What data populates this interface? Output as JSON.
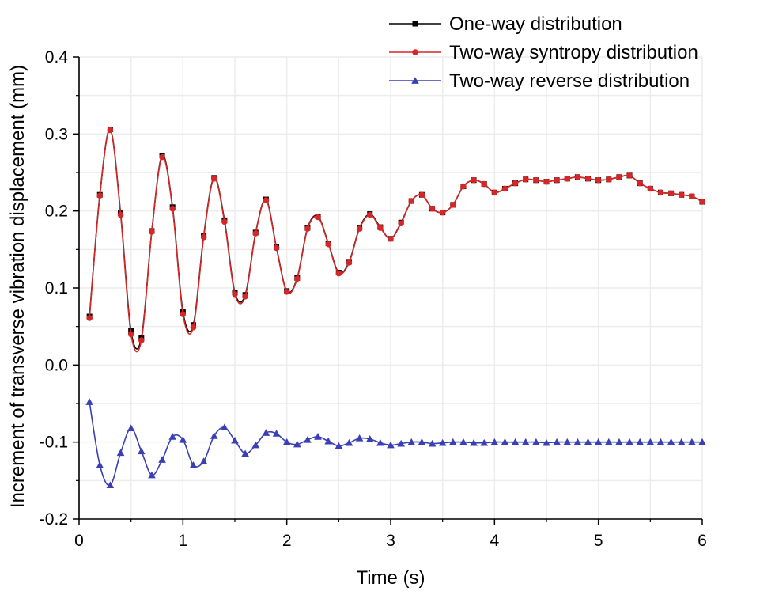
{
  "chart_data": {
    "type": "line",
    "title": "",
    "xlabel": "Time (s)",
    "ylabel": "Increment of transverse vibration displacement (mm)",
    "xlim": [
      0,
      6
    ],
    "ylim": [
      -0.2,
      0.4
    ],
    "xticks": [
      0,
      1,
      2,
      3,
      4,
      5,
      6
    ],
    "yticks": [
      -0.2,
      -0.1,
      0.0,
      0.1,
      0.2,
      0.3,
      0.4
    ],
    "xtick_labels": [
      "0",
      "1",
      "2",
      "3",
      "4",
      "5",
      "6"
    ],
    "ytick_labels": [
      "-0.2",
      "-0.1",
      "0.0",
      "0.1",
      "0.2",
      "0.3",
      "0.4"
    ],
    "grid": true,
    "legend_position": "top-right",
    "series": [
      {
        "name": "One-way distribution",
        "color": "#000000",
        "marker": "square",
        "x": [
          0.1,
          0.2,
          0.3,
          0.4,
          0.5,
          0.6,
          0.7,
          0.8,
          0.9,
          1.0,
          1.1,
          1.2,
          1.3,
          1.4,
          1.5,
          1.6,
          1.7,
          1.8,
          1.9,
          2.0,
          2.1,
          2.2,
          2.3,
          2.4,
          2.5,
          2.6,
          2.7,
          2.8,
          2.9,
          3.0,
          3.1,
          3.2,
          3.3,
          3.4,
          3.5,
          3.6,
          3.7,
          3.8,
          3.9,
          4.0,
          4.1,
          4.2,
          4.3,
          4.4,
          4.5,
          4.6,
          4.7,
          4.8,
          4.9,
          5.0,
          5.1,
          5.2,
          5.3,
          5.4,
          5.5,
          5.6,
          5.7,
          5.8,
          5.9,
          6.0
        ],
        "y": [
          0.063,
          0.221,
          0.306,
          0.197,
          0.044,
          0.035,
          0.174,
          0.272,
          0.205,
          0.069,
          0.052,
          0.168,
          0.243,
          0.188,
          0.094,
          0.091,
          0.172,
          0.215,
          0.153,
          0.096,
          0.113,
          0.178,
          0.193,
          0.158,
          0.12,
          0.134,
          0.178,
          0.196,
          0.179,
          0.164,
          0.185,
          0.213,
          0.221,
          0.203,
          0.198,
          0.208,
          0.232,
          0.24,
          0.235,
          0.224,
          0.229,
          0.236,
          0.241,
          0.24,
          0.238,
          0.24,
          0.242,
          0.244,
          0.242,
          0.24,
          0.241,
          0.244,
          0.246,
          0.236,
          0.229,
          0.224,
          0.223,
          0.221,
          0.219,
          0.212
        ]
      },
      {
        "name": "Two-way syntropy distribution",
        "color": "#d62728",
        "marker": "circle",
        "x": [
          0.1,
          0.2,
          0.3,
          0.4,
          0.5,
          0.6,
          0.7,
          0.8,
          0.9,
          1.0,
          1.1,
          1.2,
          1.3,
          1.4,
          1.5,
          1.6,
          1.7,
          1.8,
          1.9,
          2.0,
          2.1,
          2.2,
          2.3,
          2.4,
          2.5,
          2.6,
          2.7,
          2.8,
          2.9,
          3.0,
          3.1,
          3.2,
          3.3,
          3.4,
          3.5,
          3.6,
          3.7,
          3.8,
          3.9,
          4.0,
          4.1,
          4.2,
          4.3,
          4.4,
          4.5,
          4.6,
          4.7,
          4.8,
          4.9,
          5.0,
          5.1,
          5.2,
          5.3,
          5.4,
          5.5,
          5.6,
          5.7,
          5.8,
          5.9,
          6.0
        ],
        "y": [
          0.061,
          0.22,
          0.305,
          0.195,
          0.04,
          0.032,
          0.173,
          0.27,
          0.203,
          0.066,
          0.049,
          0.166,
          0.242,
          0.186,
          0.092,
          0.089,
          0.171,
          0.214,
          0.152,
          0.095,
          0.112,
          0.177,
          0.192,
          0.157,
          0.119,
          0.133,
          0.177,
          0.195,
          0.178,
          0.164,
          0.184,
          0.213,
          0.221,
          0.203,
          0.198,
          0.208,
          0.232,
          0.24,
          0.235,
          0.224,
          0.229,
          0.236,
          0.241,
          0.24,
          0.238,
          0.24,
          0.242,
          0.244,
          0.242,
          0.24,
          0.241,
          0.244,
          0.246,
          0.236,
          0.229,
          0.224,
          0.223,
          0.221,
          0.219,
          0.212
        ]
      },
      {
        "name": "Two-way reverse distribution",
        "color": "#3a3fb3",
        "marker": "triangle",
        "x": [
          0.1,
          0.2,
          0.3,
          0.4,
          0.5,
          0.6,
          0.7,
          0.8,
          0.9,
          1.0,
          1.1,
          1.2,
          1.3,
          1.4,
          1.5,
          1.6,
          1.7,
          1.8,
          1.9,
          2.0,
          2.1,
          2.2,
          2.3,
          2.4,
          2.5,
          2.6,
          2.7,
          2.8,
          2.9,
          3.0,
          3.1,
          3.2,
          3.3,
          3.4,
          3.5,
          3.6,
          3.7,
          3.8,
          3.9,
          4.0,
          4.1,
          4.2,
          4.3,
          4.4,
          4.5,
          4.6,
          4.7,
          4.8,
          4.9,
          5.0,
          5.1,
          5.2,
          5.3,
          5.4,
          5.5,
          5.6,
          5.7,
          5.8,
          5.9,
          6.0
        ],
        "y": [
          -0.048,
          -0.13,
          -0.156,
          -0.114,
          -0.082,
          -0.112,
          -0.143,
          -0.123,
          -0.093,
          -0.097,
          -0.13,
          -0.125,
          -0.092,
          -0.081,
          -0.098,
          -0.115,
          -0.104,
          -0.088,
          -0.089,
          -0.1,
          -0.103,
          -0.097,
          -0.093,
          -0.099,
          -0.105,
          -0.101,
          -0.095,
          -0.096,
          -0.101,
          -0.104,
          -0.102,
          -0.1,
          -0.1,
          -0.102,
          -0.101,
          -0.1,
          -0.1,
          -0.101,
          -0.101,
          -0.1,
          -0.1,
          -0.1,
          -0.1,
          -0.1,
          -0.101,
          -0.1,
          -0.1,
          -0.1,
          -0.1,
          -0.1,
          -0.1,
          -0.1,
          -0.1,
          -0.1,
          -0.1,
          -0.1,
          -0.1,
          -0.1,
          -0.1,
          -0.1
        ]
      }
    ]
  }
}
